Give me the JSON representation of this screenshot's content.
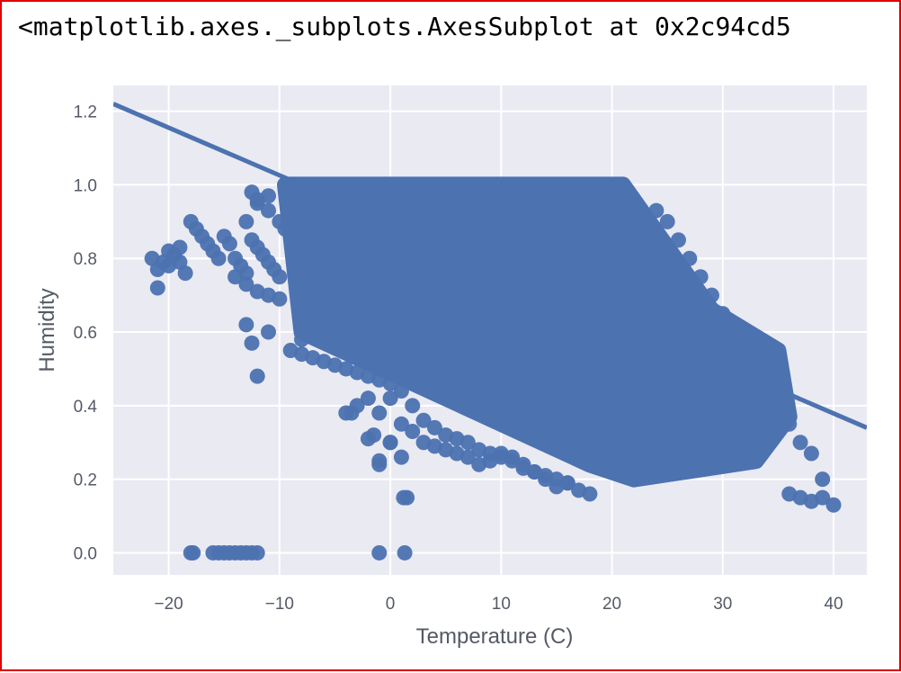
{
  "output_text": "<matplotlib.axes._subplots.AxesSubplot at 0x2c94cd5",
  "colors": {
    "background": "#eaeaf2",
    "grid": "#ffffff",
    "points": "#4c72b0",
    "text": "#555a66",
    "frame": "#e00000"
  },
  "chart_data": {
    "type": "scatter",
    "title": "",
    "xlabel": "Temperature (C)",
    "ylabel": "Humidity",
    "xlim": [
      -25,
      43
    ],
    "ylim": [
      -0.06,
      1.27
    ],
    "xticks": [
      -20,
      -10,
      0,
      10,
      20,
      30,
      40
    ],
    "xtick_labels": [
      "−20",
      "−10",
      "0",
      "10",
      "20",
      "30",
      "40"
    ],
    "yticks": [
      0.0,
      0.2,
      0.4,
      0.6,
      0.8,
      1.0,
      1.2
    ],
    "ytick_labels": [
      "0.0",
      "0.2",
      "0.4",
      "0.6",
      "0.8",
      "1.0",
      "1.2"
    ],
    "grid": true,
    "regression_line": {
      "x": [
        -25,
        43
      ],
      "y": [
        1.22,
        0.34
      ]
    },
    "dense_region": {
      "x": [
        -9.5,
        21,
        29,
        35,
        36,
        33,
        22,
        18,
        -8
      ],
      "y": [
        1.0,
        1.0,
        0.66,
        0.55,
        0.37,
        0.25,
        0.2,
        0.24,
        0.6
      ]
    },
    "series": [
      {
        "x": [
          -21.5,
          -21,
          -20.5,
          -20,
          -19.5,
          -19,
          -18.5,
          -21,
          -20,
          -19,
          -18,
          -17.5,
          -17,
          -16.5,
          -16,
          -15.5,
          -15,
          -14.5,
          -14,
          -13.5,
          -13,
          -12.5,
          -12,
          -11.5,
          -11,
          -10.5,
          -10,
          -14,
          -13,
          -12,
          -11,
          -10,
          -13,
          -12,
          -11,
          -12.5,
          -12,
          -11,
          -10,
          -9.5,
          -9,
          -8.5,
          -8,
          -7.5,
          -7,
          -6.5,
          -6,
          -5.5,
          -5,
          -4.5,
          -4,
          -3.5,
          -3,
          -9,
          -8,
          -7,
          -6,
          -5,
          -4,
          -3,
          -2,
          -1,
          0,
          -4,
          -3,
          -2,
          -1,
          0,
          1,
          2,
          3,
          4,
          5,
          6,
          7,
          8,
          9,
          10,
          11,
          12,
          13,
          14,
          15,
          16,
          17,
          18,
          0,
          1,
          2,
          3,
          4,
          5,
          6,
          7,
          8,
          9,
          10,
          11,
          12,
          13,
          14,
          15,
          16,
          -2,
          -1.5,
          -1,
          0,
          1,
          1.5,
          -1,
          1.2,
          -12.5,
          -12,
          -3.5,
          24,
          25,
          26,
          27,
          28,
          29,
          30,
          31,
          32,
          33,
          34,
          35,
          36,
          37,
          38,
          39,
          40,
          36,
          37,
          38,
          39,
          -18,
          -17.8,
          -16,
          -15.5,
          -15,
          -14.5,
          -14,
          -13.5,
          -13,
          -12.5,
          -12,
          -1,
          1.3,
          -13,
          -11,
          -8,
          -5
        ],
        "y": [
          0.8,
          0.77,
          0.79,
          0.82,
          0.81,
          0.79,
          0.76,
          0.72,
          0.78,
          0.83,
          0.9,
          0.88,
          0.86,
          0.84,
          0.82,
          0.8,
          0.86,
          0.84,
          0.8,
          0.78,
          0.76,
          0.85,
          0.83,
          0.81,
          0.79,
          0.77,
          0.75,
          0.75,
          0.73,
          0.71,
          0.7,
          0.69,
          0.9,
          0.95,
          0.97,
          0.98,
          0.96,
          0.93,
          0.9,
          0.88,
          0.86,
          0.84,
          0.82,
          0.8,
          0.78,
          0.76,
          0.74,
          0.72,
          0.7,
          0.68,
          0.66,
          0.64,
          0.62,
          0.55,
          0.54,
          0.53,
          0.52,
          0.51,
          0.5,
          0.49,
          0.48,
          0.47,
          0.46,
          0.38,
          0.4,
          0.42,
          0.38,
          0.3,
          0.35,
          0.33,
          0.3,
          0.29,
          0.28,
          0.27,
          0.26,
          0.24,
          0.25,
          0.27,
          0.26,
          0.24,
          0.22,
          0.2,
          0.18,
          0.19,
          0.17,
          0.16,
          0.42,
          0.44,
          0.4,
          0.36,
          0.34,
          0.32,
          0.31,
          0.3,
          0.28,
          0.27,
          0.26,
          0.25,
          0.23,
          0.22,
          0.21,
          0.2,
          0.19,
          0.31,
          0.32,
          0.24,
          0.3,
          0.26,
          0.15,
          0.25,
          0.15,
          0.57,
          0.48,
          0.38,
          0.93,
          0.9,
          0.85,
          0.8,
          0.75,
          0.7,
          0.65,
          0.6,
          0.56,
          0.5,
          0.45,
          0.4,
          0.35,
          0.3,
          0.27,
          0.2,
          0.13,
          0.16,
          0.15,
          0.14,
          0.15,
          0.0,
          0.0,
          0.0,
          0.0,
          0.0,
          0.0,
          0.0,
          0.0,
          0.0,
          0.0,
          0.0,
          0.0,
          0.0,
          0.62,
          0.6,
          0.58,
          0.56
        ]
      }
    ]
  }
}
